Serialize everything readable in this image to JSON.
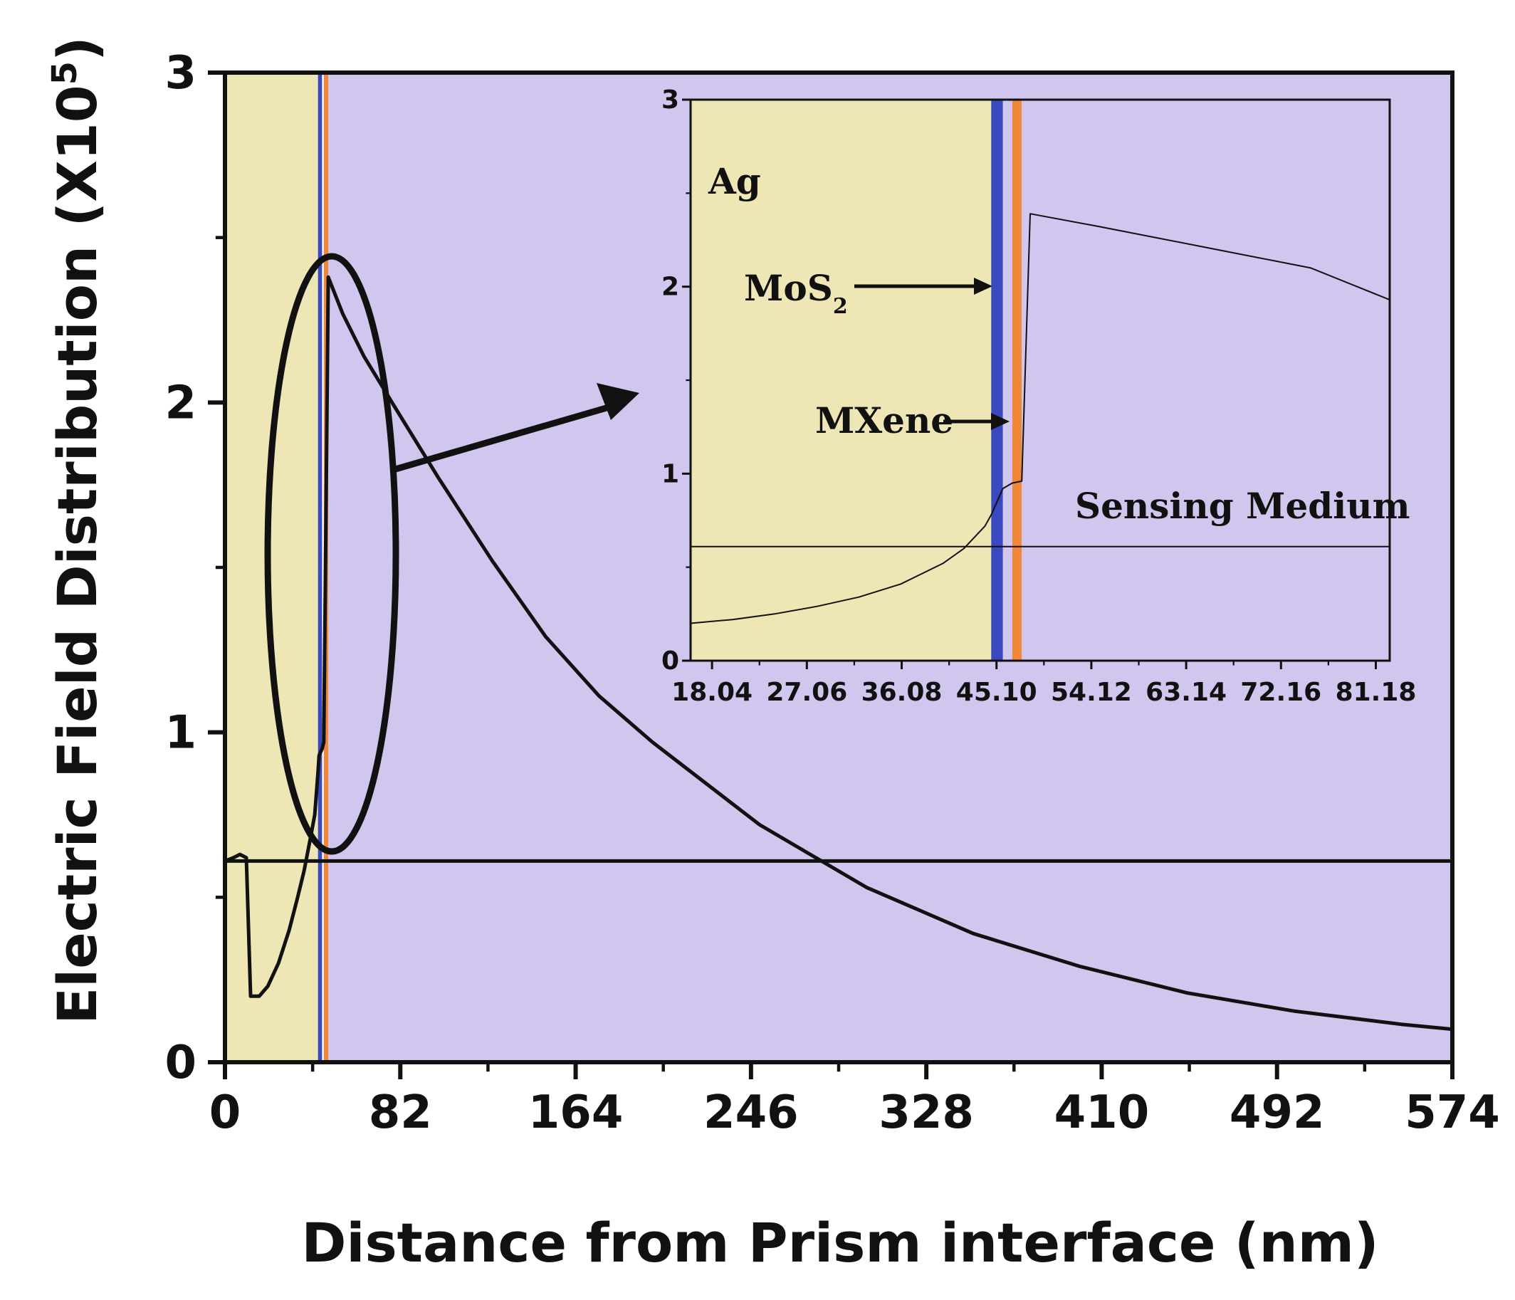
{
  "chart_data": [
    {
      "type": "line",
      "id": "main",
      "xlabel": "Distance from Prism interface (nm)",
      "ylabel": "Electric Field Distribution (X10",
      "ylabel_exponent": "5",
      "ylabel_close": ")",
      "xlim": [
        0,
        574
      ],
      "ylim": [
        0,
        3
      ],
      "xticks": [
        0,
        82,
        164,
        246,
        328,
        410,
        492,
        574
      ],
      "xtick_labels": [
        "0",
        "82",
        "164",
        "246",
        "328",
        "410",
        "492",
        "574"
      ],
      "yticks": [
        0,
        1,
        2,
        3
      ],
      "ytick_labels": [
        "0",
        "1",
        "2",
        "3"
      ],
      "regions": [
        {
          "name": "Ag",
          "x0": 0,
          "x1": 43.5,
          "color": "#efe6b5"
        },
        {
          "name": "MoS2",
          "x0": 43.5,
          "x1": 45.4,
          "color": "#3b49c0"
        },
        {
          "name": "MXene",
          "x0": 46.2,
          "x1": 48.3,
          "color": "#f0873a"
        },
        {
          "name": "Sensing Medium",
          "x0": 48.3,
          "x1": 574,
          "color": "#d0c6ee"
        }
      ],
      "series": [
        {
          "name": "Electric field",
          "x": [
            0,
            4,
            7,
            10,
            12,
            16,
            20,
            25,
            30,
            34,
            37,
            40,
            42,
            43.5,
            44,
            45.4,
            46.2,
            48.3,
            55,
            65,
            80,
            100,
            125,
            150,
            175,
            200,
            250,
            300,
            350,
            400,
            450,
            500,
            550,
            574
          ],
          "y": [
            0.61,
            0.62,
            0.63,
            0.62,
            0.2,
            0.2,
            0.23,
            0.3,
            0.4,
            0.5,
            0.58,
            0.68,
            0.75,
            0.88,
            0.93,
            0.95,
            0.97,
            2.38,
            2.27,
            2.14,
            1.98,
            1.77,
            1.52,
            1.29,
            1.11,
            0.97,
            0.72,
            0.53,
            0.39,
            0.29,
            0.21,
            0.155,
            0.115,
            0.1
          ]
        },
        {
          "name": "Reference level",
          "x": [
            0,
            574
          ],
          "y": [
            0.61,
            0.61
          ]
        }
      ]
    },
    {
      "type": "line",
      "id": "inset",
      "xlim": [
        16,
        82.5
      ],
      "ylim": [
        0,
        3
      ],
      "xticks": [
        18.04,
        27.06,
        36.08,
        45.1,
        54.12,
        63.14,
        72.16,
        81.18
      ],
      "xtick_labels": [
        "18.04",
        "27.06",
        "36.08",
        "45.10",
        "54.12",
        "63.14",
        "72.16",
        "81.18"
      ],
      "yticks": [
        0,
        1,
        2,
        3
      ],
      "ytick_labels": [
        "0",
        "1",
        "2",
        "3"
      ],
      "regions": [
        {
          "name": "Ag",
          "x0": 16,
          "x1": 44.6,
          "color": "#efe6b5"
        },
        {
          "name": "MoS2",
          "x0": 44.6,
          "x1": 45.7,
          "color": "#3b49c0"
        },
        {
          "name": "MXene",
          "x0": 46.6,
          "x1": 47.5,
          "color": "#f0873a"
        },
        {
          "name": "Sensing Medium",
          "x0": 47.5,
          "x1": 82.5,
          "color": "#d0c6ee"
        }
      ],
      "annotations": [
        {
          "text": "Ag"
        },
        {
          "text": "MoS",
          "subscript": "2"
        },
        {
          "text": "MXene"
        },
        {
          "text": "Sensing Medium"
        }
      ],
      "series": [
        {
          "name": "Electric field (zoom)",
          "x": [
            16,
            20,
            24,
            28,
            32,
            36,
            40,
            42,
            44,
            44.6,
            45.7,
            46.6,
            47.5,
            48.3,
            55,
            65,
            75,
            82.5
          ],
          "y": [
            0.2,
            0.22,
            0.25,
            0.29,
            0.34,
            0.41,
            0.52,
            0.6,
            0.72,
            0.78,
            0.92,
            0.95,
            0.96,
            2.39,
            2.32,
            2.21,
            2.1,
            1.93
          ]
        },
        {
          "name": "Reference level (zoom)",
          "x": [
            16,
            82.5
          ],
          "y": [
            0.61,
            0.61
          ]
        }
      ]
    }
  ]
}
